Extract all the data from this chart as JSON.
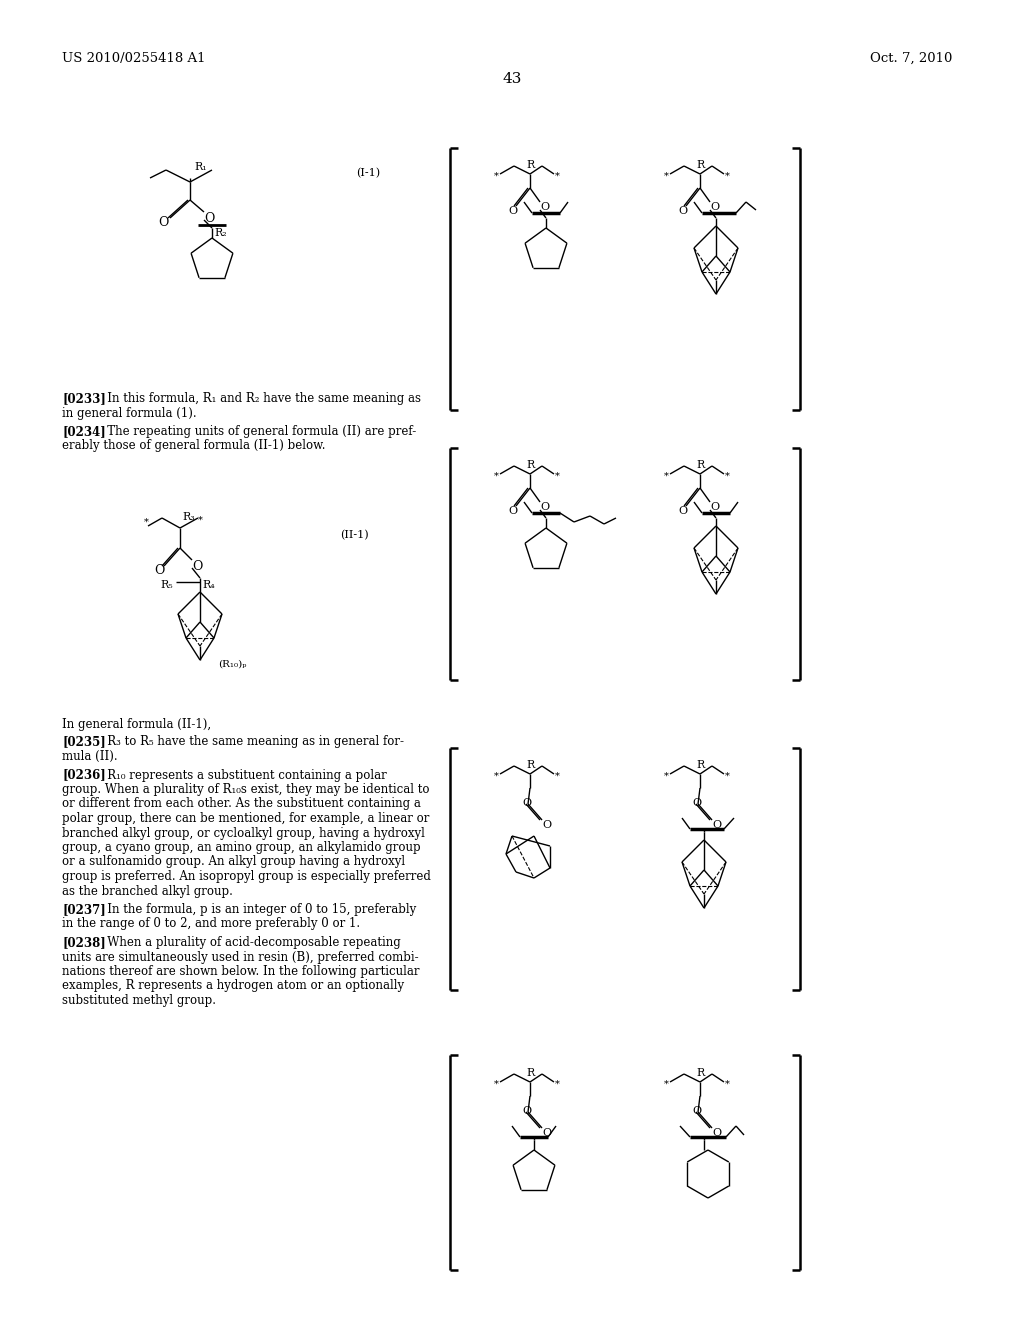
{
  "background_color": "#ffffff",
  "header_left": "US 2010/0255418 A1",
  "header_right": "Oct. 7, 2010",
  "page_number": "43",
  "para_0233": "[0233]   In this formula, R1 and R2 have the same meaning as in general formula (1).",
  "para_0234": "[0234]   The repeating units of general formula (II) are pref- erably those of general formula (II-1) below.",
  "para_plain": "In general formula (II-1),",
  "para_0235": "[0235]   R3 to R5 have the same meaning as in general for- mula (II).",
  "para_0236_lines": [
    "[0236]   R10 represents a substituent containing a polar",
    "group. When a plurality of R10s exist, they may be identical to",
    "or different from each other. As the substituent containing a",
    "polar group, there can be mentioned, for example, a linear or",
    "branched alkyl group, or cycloalkyl group, having a hydroxyl",
    "group, a cyano group, an amino group, an alkylamido group",
    "or a sulfonamido group. An alkyl group having a hydroxyl",
    "group is preferred. An isopropyl group is especially preferred",
    "as the branched alkyl group."
  ],
  "para_0237_lines": [
    "[0237]   In the formula, p is an integer of 0 to 15, preferably",
    "in the range of 0 to 2, and more preferably 0 or 1."
  ],
  "para_0238_lines": [
    "[0238]   When a plurality of acid-decomposable repeating",
    "units are simultaneously used in resin (B), preferred combi-",
    "nations thereof are shown below. In the following particular",
    "examples, R represents a hydrogen atom or an optionally",
    "substituted methyl group."
  ],
  "label_I1": "(I-1)",
  "label_II1": "(II-1)"
}
